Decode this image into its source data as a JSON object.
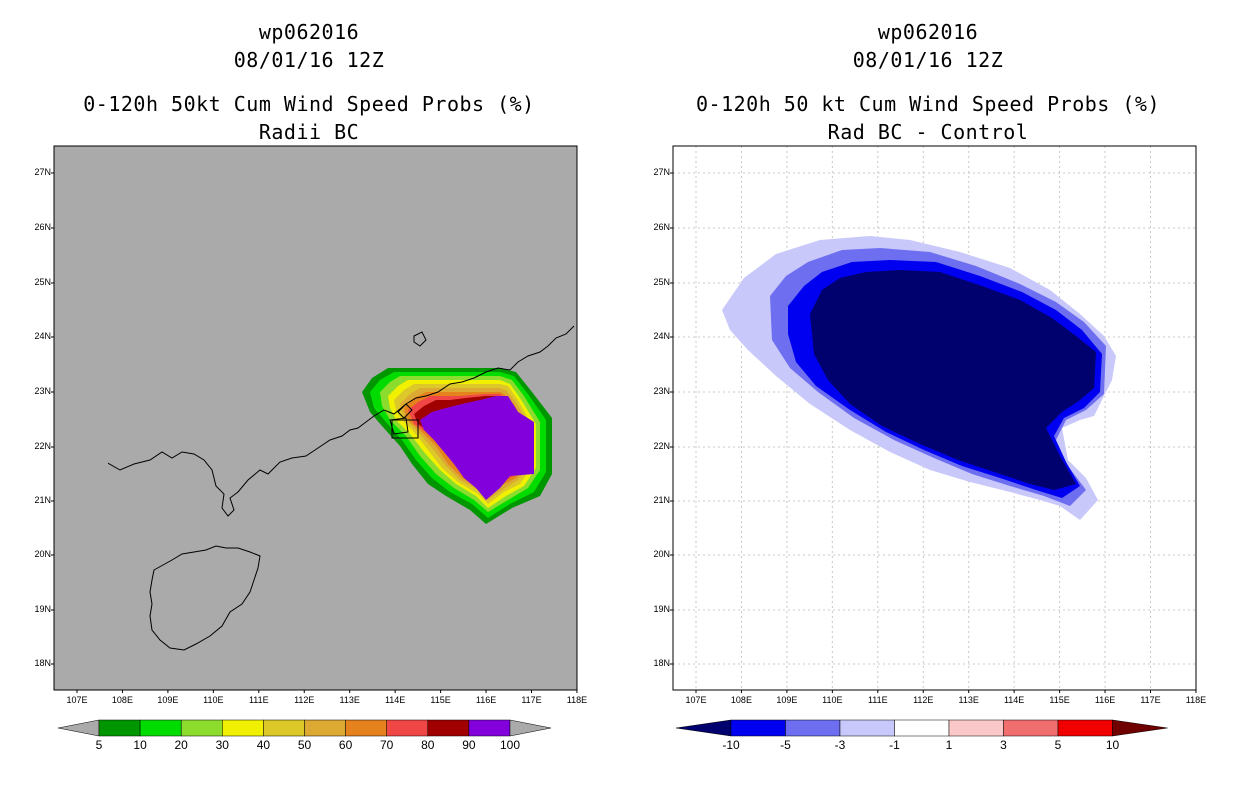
{
  "left": {
    "title_line1": "wp062016",
    "title_line2": "08/01/16 12Z",
    "title_line3": "0-120h 50kt Cum Wind Speed Probs (%)",
    "title_line4": "Radii BC",
    "colorbar_labels": [
      "5",
      "10",
      "20",
      "30",
      "40",
      "50",
      "60",
      "70",
      "80",
      "90",
      "100"
    ],
    "colorbar_colors": [
      "#009600",
      "#00dc00",
      "#8cdc2d",
      "#f0f000",
      "#dcc828",
      "#dcaa32",
      "#e6821e",
      "#f04646",
      "#a00000",
      "#8200dc"
    ],
    "background_color": "#aaaaaa"
  },
  "right": {
    "title_line1": "wp062016",
    "title_line2": "08/01/16 12Z",
    "title_line3": "0-120h 50 kt Cum Wind Speed Probs (%)",
    "title_line4": "Rad BC - Control",
    "colorbar_labels": [
      "-10",
      "-5",
      "-3",
      "-1",
      "1",
      "3",
      "5",
      "10"
    ],
    "colorbar_colors": [
      "#00006e",
      "#0000f0",
      "#6e6ef0",
      "#c8c8fa",
      "#ffffff",
      "#fac8c8",
      "#f06e6e",
      "#f00000",
      "#6e0000"
    ]
  },
  "axes": {
    "lat_labels": [
      "27N",
      "26N",
      "25N",
      "24N",
      "23N",
      "22N",
      "21N",
      "20N",
      "19N",
      "18N"
    ],
    "lon_labels": [
      "107E",
      "108E",
      "109E",
      "110E",
      "111E",
      "112E",
      "113E",
      "114E",
      "115E",
      "116E",
      "117E",
      "118E"
    ]
  }
}
